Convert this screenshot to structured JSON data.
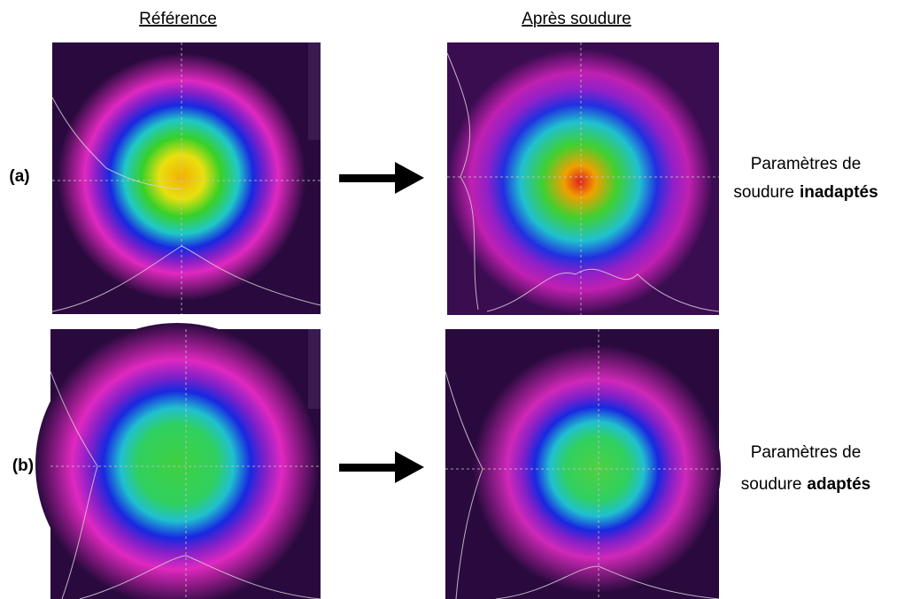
{
  "headers": {
    "reference": "Référence",
    "after": "Après soudure"
  },
  "rows": [
    {
      "label": "(a)",
      "caption": {
        "line1": "Paramètres de",
        "line2": "soudure",
        "bold": "inadaptés"
      }
    },
    {
      "label": "(b)",
      "caption": {
        "line1": "Paramètres de",
        "line2": "soudure",
        "bold": "adaptés"
      }
    }
  ]
}
